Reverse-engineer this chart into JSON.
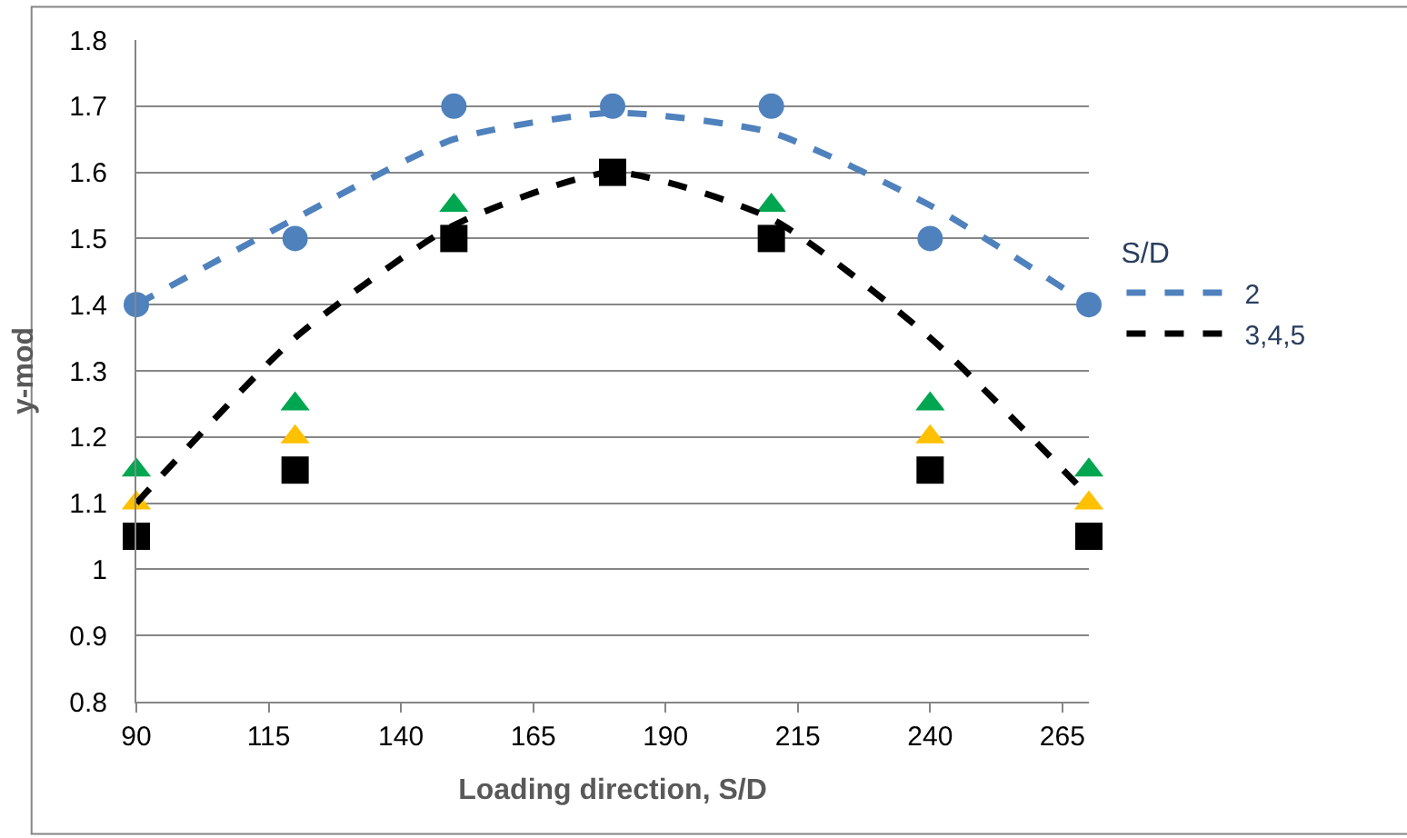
{
  "chart_data": {
    "type": "scatter",
    "xlabel": "Loading direction, S/D",
    "ylabel": "y-mod",
    "legend_title": "S/D",
    "x": [
      90,
      120,
      150,
      180,
      210,
      240,
      270
    ],
    "series": [
      {
        "marker": "circle",
        "color": "#4f81bd",
        "values": [
          1.4,
          1.5,
          1.7,
          1.7,
          1.7,
          1.5,
          1.4
        ]
      },
      {
        "marker": "triangle",
        "color": "#00a650",
        "values": [
          1.15,
          1.25,
          1.55,
          null,
          1.55,
          1.25,
          1.15
        ]
      },
      {
        "marker": "triangle",
        "color": "#ffc000",
        "values": [
          1.1,
          1.2,
          null,
          null,
          null,
          1.2,
          1.1
        ]
      },
      {
        "marker": "square",
        "color": "#000000",
        "values": [
          1.05,
          1.15,
          1.5,
          1.6,
          1.5,
          1.15,
          1.05
        ]
      },
      {
        "type": "line",
        "name": "2",
        "marker": "none",
        "line_style": "dashed",
        "color": "#4f81bd",
        "values": [
          1.4,
          1.53,
          1.65,
          1.69,
          1.66,
          1.55,
          1.4
        ]
      },
      {
        "type": "line",
        "name": "3,4,5",
        "marker": "none",
        "line_style": "dashed",
        "color": "#000000",
        "values": [
          1.1,
          1.35,
          1.52,
          1.6,
          1.53,
          1.35,
          1.11
        ]
      }
    ],
    "xlim": [
      90,
      270
    ],
    "xticks": [
      90,
      115,
      140,
      165,
      190,
      215,
      240,
      265
    ],
    "ylim": [
      0.8,
      1.8
    ],
    "yticks": [
      0.8,
      0.9,
      1,
      1.1,
      1.2,
      1.3,
      1.4,
      1.5,
      1.6,
      1.7,
      1.8
    ],
    "grid": "y",
    "legend": "right"
  }
}
